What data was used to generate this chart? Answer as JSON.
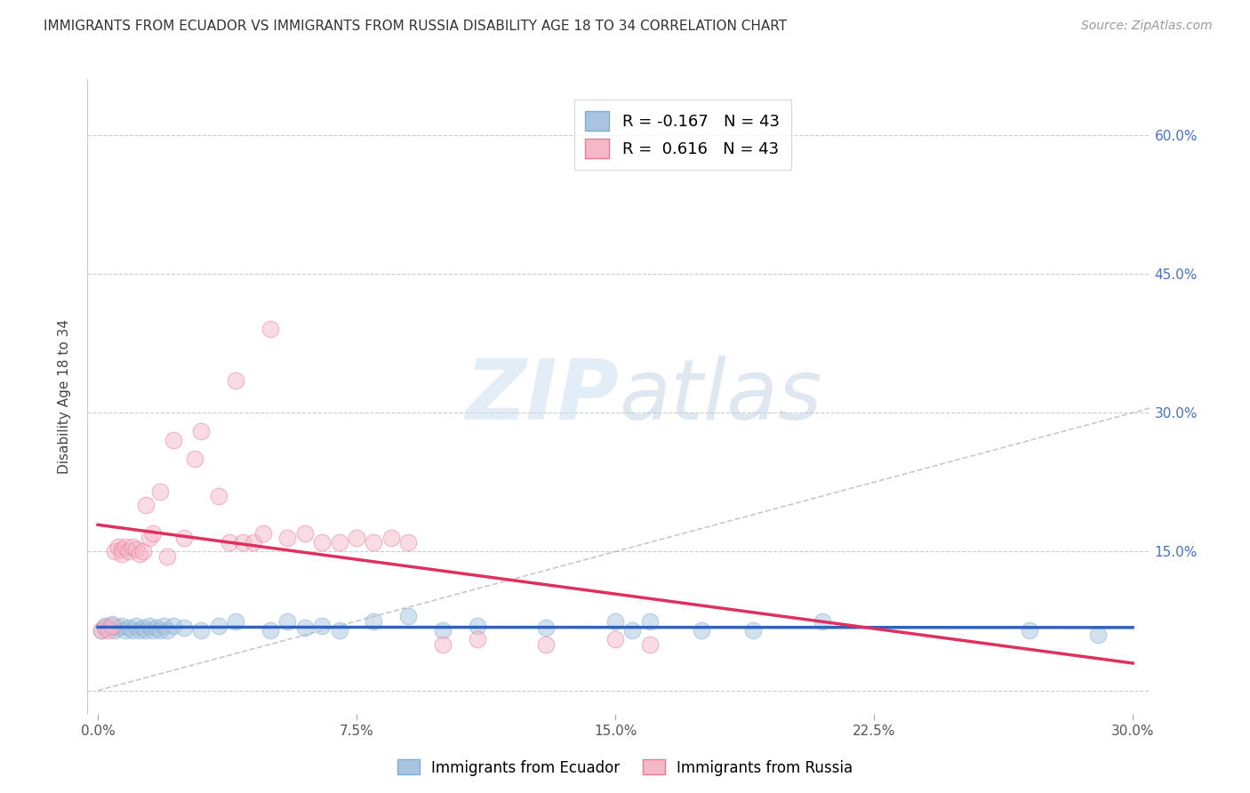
{
  "title": "IMMIGRANTS FROM ECUADOR VS IMMIGRANTS FROM RUSSIA DISABILITY AGE 18 TO 34 CORRELATION CHART",
  "source": "Source: ZipAtlas.com",
  "ylabel": "Disability Age 18 to 34",
  "ytick_values": [
    0.0,
    0.15,
    0.3,
    0.45,
    0.6
  ],
  "xtick_values": [
    0.0,
    0.075,
    0.15,
    0.225,
    0.3
  ],
  "xlim": [
    -0.003,
    0.305
  ],
  "ylim": [
    -0.025,
    0.66
  ],
  "ecuador_color": "#a8c4e0",
  "ecuador_edge_color": "#7bafd4",
  "russia_color": "#f4b8c8",
  "russia_edge_color": "#e87a9a",
  "ecuador_line_color": "#3060c0",
  "russia_line_color": "#e03060",
  "diagonal_color": "#bbbbbb",
  "R_ecuador": -0.167,
  "N_ecuador": 43,
  "R_russia": 0.616,
  "N_russia": 43,
  "legend_label_ecuador": "Immigrants from Ecuador",
  "legend_label_russia": "Immigrants from Russia",
  "ecuador_x": [
    0.001,
    0.002,
    0.003,
    0.004,
    0.005,
    0.006,
    0.007,
    0.008,
    0.009,
    0.01,
    0.011,
    0.012,
    0.013,
    0.014,
    0.015,
    0.016,
    0.017,
    0.018,
    0.019,
    0.02,
    0.022,
    0.025,
    0.03,
    0.035,
    0.04,
    0.05,
    0.055,
    0.06,
    0.065,
    0.07,
    0.08,
    0.09,
    0.1,
    0.11,
    0.13,
    0.15,
    0.155,
    0.16,
    0.175,
    0.19,
    0.21,
    0.27,
    0.29
  ],
  "ecuador_y": [
    0.065,
    0.07,
    0.068,
    0.072,
    0.065,
    0.068,
    0.07,
    0.065,
    0.068,
    0.065,
    0.07,
    0.065,
    0.068,
    0.065,
    0.07,
    0.065,
    0.068,
    0.065,
    0.07,
    0.065,
    0.07,
    0.068,
    0.065,
    0.07,
    0.075,
    0.065,
    0.075,
    0.068,
    0.07,
    0.065,
    0.075,
    0.08,
    0.065,
    0.07,
    0.068,
    0.075,
    0.065,
    0.075,
    0.065,
    0.065,
    0.075,
    0.065,
    0.06
  ],
  "russia_x": [
    0.001,
    0.002,
    0.003,
    0.004,
    0.005,
    0.006,
    0.007,
    0.007,
    0.008,
    0.009,
    0.01,
    0.011,
    0.012,
    0.013,
    0.014,
    0.015,
    0.016,
    0.018,
    0.02,
    0.022,
    0.025,
    0.028,
    0.03,
    0.035,
    0.038,
    0.04,
    0.042,
    0.045,
    0.048,
    0.05,
    0.055,
    0.06,
    0.065,
    0.07,
    0.075,
    0.08,
    0.085,
    0.09,
    0.1,
    0.11,
    0.13,
    0.15,
    0.16
  ],
  "russia_y": [
    0.065,
    0.068,
    0.065,
    0.07,
    0.15,
    0.155,
    0.152,
    0.148,
    0.155,
    0.15,
    0.155,
    0.152,
    0.148,
    0.15,
    0.2,
    0.165,
    0.17,
    0.215,
    0.145,
    0.27,
    0.165,
    0.25,
    0.28,
    0.21,
    0.16,
    0.335,
    0.16,
    0.16,
    0.17,
    0.39,
    0.165,
    0.17,
    0.16,
    0.16,
    0.165,
    0.16,
    0.165,
    0.16,
    0.05,
    0.055,
    0.05,
    0.055,
    0.05
  ],
  "marker_size": 180,
  "alpha": 0.5
}
